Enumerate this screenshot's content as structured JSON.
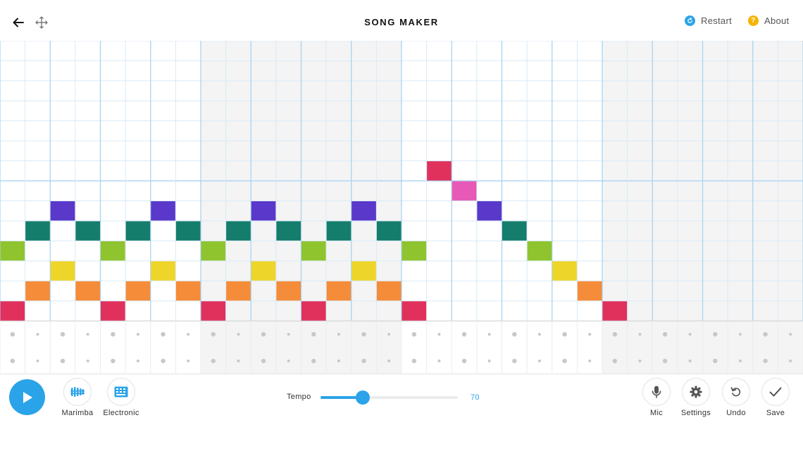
{
  "header": {
    "title": "SONG MAKER",
    "restart_label": "Restart",
    "about_label": "About",
    "back_icon": "back-arrow-icon",
    "move_icon": "move-icon"
  },
  "grid": {
    "columns": 32,
    "melody_rows": 14,
    "percussion_rows": 2,
    "shaded_column_ranges": [
      [
        8,
        15
      ],
      [
        24,
        31
      ]
    ],
    "row_colors": [
      "#e0315c",
      "#f58c3a",
      "#eed52a",
      "#8fc42f",
      "#157d6b",
      "#5a38c9",
      "#e659b6",
      "#e0315c"
    ],
    "notes": [
      {
        "col": 0,
        "row": 0
      },
      {
        "col": 1,
        "row": 1
      },
      {
        "col": 2,
        "row": 2
      },
      {
        "col": 0,
        "row": 3
      },
      {
        "col": 1,
        "row": 4
      },
      {
        "col": 2,
        "row": 5
      },
      {
        "col": 3,
        "row": 4
      },
      {
        "col": 3,
        "row": 1
      },
      {
        "col": 4,
        "row": 0
      },
      {
        "col": 5,
        "row": 1
      },
      {
        "col": 6,
        "row": 2
      },
      {
        "col": 4,
        "row": 3
      },
      {
        "col": 5,
        "row": 4
      },
      {
        "col": 6,
        "row": 5
      },
      {
        "col": 7,
        "row": 4
      },
      {
        "col": 7,
        "row": 1
      },
      {
        "col": 8,
        "row": 0
      },
      {
        "col": 9,
        "row": 1
      },
      {
        "col": 10,
        "row": 2
      },
      {
        "col": 8,
        "row": 3
      },
      {
        "col": 9,
        "row": 4
      },
      {
        "col": 10,
        "row": 5
      },
      {
        "col": 11,
        "row": 4
      },
      {
        "col": 11,
        "row": 1
      },
      {
        "col": 12,
        "row": 0
      },
      {
        "col": 13,
        "row": 1
      },
      {
        "col": 14,
        "row": 2
      },
      {
        "col": 12,
        "row": 3
      },
      {
        "col": 13,
        "row": 4
      },
      {
        "col": 14,
        "row": 5
      },
      {
        "col": 15,
        "row": 4
      },
      {
        "col": 15,
        "row": 1
      },
      {
        "col": 16,
        "row": 0
      },
      {
        "col": 16,
        "row": 3
      },
      {
        "col": 17,
        "row": 7
      },
      {
        "col": 18,
        "row": 6
      },
      {
        "col": 19,
        "row": 5
      },
      {
        "col": 20,
        "row": 4
      },
      {
        "col": 21,
        "row": 3
      },
      {
        "col": 22,
        "row": 2
      },
      {
        "col": 23,
        "row": 1
      },
      {
        "col": 24,
        "row": 0
      }
    ]
  },
  "controls": {
    "play_icon": "play-icon",
    "instruments": [
      {
        "label": "Marimba",
        "icon": "marimba-icon"
      },
      {
        "label": "Electronic",
        "icon": "electronic-icon"
      }
    ],
    "tempo_label": "Tempo",
    "tempo_value": "70",
    "tempo_fraction": 0.31,
    "mic_label": "Mic",
    "settings_label": "Settings",
    "undo_label": "Undo",
    "save_label": "Save"
  },
  "colors": {
    "accent": "#2ba3e8",
    "restart_icon": "#2ba3e8",
    "about_icon": "#f5b400",
    "grid_line": "#d8eaf7",
    "beat_line": "#a9d4f0",
    "shade": "#f4f4f4"
  }
}
